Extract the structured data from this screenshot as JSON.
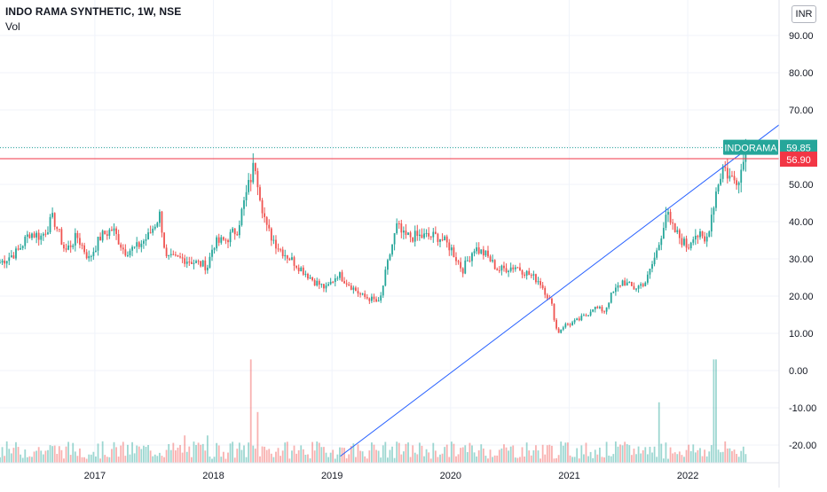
{
  "header": {
    "title": "INDO RAMA SYNTHETIC, 1W, NSE",
    "volume_label": "Vol"
  },
  "currency_button": "INR",
  "colors": {
    "up": "#26a69a",
    "down": "#ef5350",
    "trendline": "#2962ff",
    "resistance": "#f23645",
    "last_price": "#26a69a"
  },
  "chart_data": {
    "type": "candlestick",
    "symbol_label": "INDORAMA",
    "last_price": 59.85,
    "resistance_level": 56.9,
    "last_price_label": "59.85",
    "resistance_label": "56.90",
    "y_ticks": [
      "90.00",
      "80.00",
      "70.00",
      "60.00",
      "50.00",
      "40.00",
      "30.00",
      "20.00",
      "10.00",
      "0.00",
      "-10.00",
      "-20.00"
    ],
    "y_tick_values": [
      90,
      80,
      70,
      60,
      50,
      40,
      30,
      20,
      10,
      0,
      -10,
      -20
    ],
    "x_ticks": [
      "2017",
      "2018",
      "2019",
      "2020",
      "2021",
      "2022"
    ],
    "x_tick_values": [
      2017,
      2018,
      2019,
      2020,
      2021,
      2022
    ],
    "x_range": [
      2016.2,
      2022.77
    ],
    "y_range": [
      -24,
      96
    ],
    "grid": true,
    "trendline": {
      "from": [
        2019.07,
        -23
      ],
      "to": [
        2022.77,
        66
      ]
    },
    "price_path": [
      [
        2016.2,
        29
      ],
      [
        2016.35,
        32
      ],
      [
        2016.45,
        37
      ],
      [
        2016.55,
        36
      ],
      [
        2016.65,
        41
      ],
      [
        2016.75,
        32
      ],
      [
        2016.85,
        36
      ],
      [
        2016.95,
        30
      ],
      [
        2017.05,
        36
      ],
      [
        2017.15,
        38
      ],
      [
        2017.25,
        32
      ],
      [
        2017.35,
        33
      ],
      [
        2017.45,
        36
      ],
      [
        2017.55,
        42
      ],
      [
        2017.6,
        30
      ],
      [
        2017.75,
        30
      ],
      [
        2017.85,
        29
      ],
      [
        2017.95,
        28
      ],
      [
        2018.0,
        34
      ],
      [
        2018.1,
        35
      ],
      [
        2018.2,
        38
      ],
      [
        2018.3,
        50
      ],
      [
        2018.35,
        56
      ],
      [
        2018.4,
        46
      ],
      [
        2018.45,
        38
      ],
      [
        2018.55,
        33
      ],
      [
        2018.65,
        30
      ],
      [
        2018.75,
        27
      ],
      [
        2018.85,
        24
      ],
      [
        2018.95,
        22
      ],
      [
        2019.05,
        26
      ],
      [
        2019.15,
        23
      ],
      [
        2019.25,
        20
      ],
      [
        2019.35,
        19
      ],
      [
        2019.4,
        18
      ],
      [
        2019.45,
        26
      ],
      [
        2019.5,
        33
      ],
      [
        2019.55,
        39
      ],
      [
        2019.6,
        36
      ],
      [
        2019.75,
        36
      ],
      [
        2019.9,
        36
      ],
      [
        2020.0,
        33
      ],
      [
        2020.1,
        27
      ],
      [
        2020.2,
        33
      ],
      [
        2020.3,
        31
      ],
      [
        2020.4,
        27
      ],
      [
        2020.55,
        28
      ],
      [
        2020.65,
        26
      ],
      [
        2020.75,
        24
      ],
      [
        2020.85,
        18
      ],
      [
        2020.9,
        10
      ],
      [
        2020.95,
        12
      ],
      [
        2021.05,
        13
      ],
      [
        2021.15,
        15
      ],
      [
        2021.2,
        17
      ],
      [
        2021.3,
        16
      ],
      [
        2021.35,
        20
      ],
      [
        2021.45,
        24
      ],
      [
        2021.55,
        22
      ],
      [
        2021.65,
        24
      ],
      [
        2021.75,
        33
      ],
      [
        2021.82,
        43
      ],
      [
        2021.85,
        39
      ],
      [
        2021.95,
        35
      ],
      [
        2022.0,
        33
      ],
      [
        2022.05,
        37
      ],
      [
        2022.1,
        36
      ],
      [
        2022.15,
        34
      ],
      [
        2022.2,
        42
      ],
      [
        2022.25,
        50
      ],
      [
        2022.3,
        55
      ],
      [
        2022.35,
        52
      ],
      [
        2022.4,
        51
      ],
      [
        2022.45,
        54
      ],
      [
        2022.5,
        59.85
      ]
    ],
    "volume_spikes": [
      {
        "x": 2017.75,
        "value": 14
      },
      {
        "x": 2017.95,
        "value": 14
      },
      {
        "x": 2018.32,
        "value": 53
      },
      {
        "x": 2018.38,
        "value": 26
      },
      {
        "x": 2021.75,
        "value": 31
      },
      {
        "x": 2022.23,
        "value": 53
      }
    ],
    "volume_scale_max": 100
  }
}
